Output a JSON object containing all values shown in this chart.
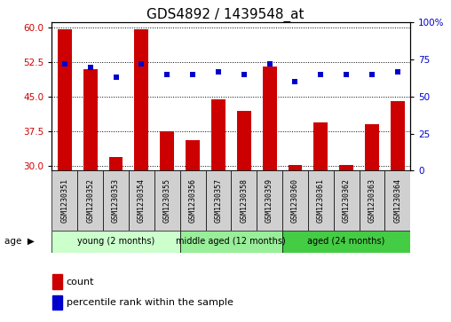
{
  "title": "GDS4892 / 1439548_at",
  "samples": [
    "GSM1230351",
    "GSM1230352",
    "GSM1230353",
    "GSM1230354",
    "GSM1230355",
    "GSM1230356",
    "GSM1230357",
    "GSM1230358",
    "GSM1230359",
    "GSM1230360",
    "GSM1230361",
    "GSM1230362",
    "GSM1230363",
    "GSM1230364"
  ],
  "counts": [
    59.5,
    51.0,
    32.0,
    59.5,
    37.5,
    35.5,
    44.5,
    42.0,
    51.5,
    30.2,
    39.5,
    30.2,
    39.0,
    44.0
  ],
  "percentiles": [
    72,
    70,
    63,
    72,
    65,
    65,
    67,
    65,
    72,
    60,
    65,
    65,
    65,
    67
  ],
  "bar_color": "#cc0000",
  "dot_color": "#0000cc",
  "ylim_left": [
    29.0,
    61.0
  ],
  "ylim_right": [
    0,
    100
  ],
  "yticks_left": [
    30,
    37.5,
    45,
    52.5,
    60
  ],
  "yticks_right": [
    0,
    25,
    50,
    75,
    100
  ],
  "groups": [
    {
      "label": "young (2 months)",
      "start": 0,
      "end": 5,
      "color": "#ccffcc"
    },
    {
      "label": "middle aged (12 months)",
      "start": 5,
      "end": 9,
      "color": "#99ee99"
    },
    {
      "label": "aged (24 months)",
      "start": 9,
      "end": 14,
      "color": "#44cc44"
    }
  ],
  "age_label": "age",
  "legend_count_label": "count",
  "legend_percentile_label": "percentile rank within the sample",
  "plot_bg_color": "#ffffff",
  "bar_bottom": 29.0,
  "title_fontsize": 11,
  "tick_fontsize": 7.5,
  "label_fontsize": 8
}
